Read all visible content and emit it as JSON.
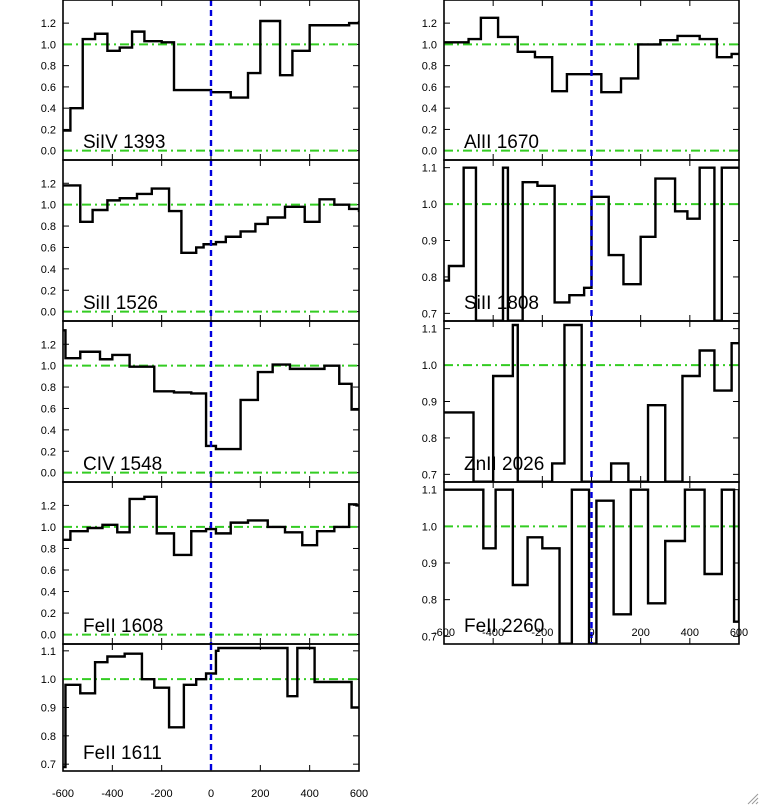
{
  "colors": {
    "spectrum": "#000000",
    "continuum": "#33cc22",
    "zero_velocity": "#0000dd"
  },
  "chart_data": {
    "type": "line",
    "xlabel": "",
    "ylabel": "",
    "xlim": [
      -600,
      600
    ],
    "x_ticks": [
      -600,
      -400,
      -200,
      0,
      200,
      400,
      600
    ],
    "x_tick_labels": [
      "-600",
      "-400",
      "-200",
      "0",
      "200",
      "400",
      "600"
    ],
    "reference_lines": {
      "continuum": 1.0,
      "baseline": 0.0,
      "velocity": 0
    },
    "panels": [
      {
        "label": "SiIV 1393",
        "column": "left",
        "row": 0,
        "ylim": [
          -0.05,
          1.38
        ],
        "y_ticks": [
          0.0,
          0.2,
          0.4,
          0.6,
          0.8,
          1.0,
          1.2
        ],
        "y_tick_labels": [
          "0.0",
          "0.2",
          "0.4",
          "0.6",
          "0.8",
          "1.0",
          "1.2"
        ],
        "baseline": true,
        "x": [
          -600,
          -570,
          -520,
          -470,
          -420,
          -370,
          -320,
          -270,
          -200,
          -150,
          -70,
          0,
          80,
          150,
          200,
          280,
          330,
          400,
          480,
          560,
          600
        ],
        "y": [
          0.19,
          0.4,
          1.05,
          1.1,
          0.94,
          0.97,
          1.12,
          1.03,
          1.02,
          0.57,
          0.57,
          0.55,
          0.5,
          0.73,
          1.22,
          0.71,
          0.94,
          1.18,
          1.18,
          1.2,
          1.22
        ]
      },
      {
        "label": "AlII 1670",
        "column": "right",
        "row": 0,
        "ylim": [
          -0.05,
          1.38
        ],
        "y_ticks": [
          0.0,
          0.2,
          0.4,
          0.6,
          0.8,
          1.0,
          1.2
        ],
        "y_tick_labels": [
          "0.0",
          "0.2",
          "0.4",
          "0.6",
          "0.8",
          "1.0",
          "1.2"
        ],
        "baseline": true,
        "x": [
          -600,
          -500,
          -450,
          -380,
          -300,
          -230,
          -160,
          -100,
          -30,
          40,
          120,
          190,
          280,
          350,
          440,
          510,
          570
        ],
        "y": [
          1.02,
          1.05,
          1.25,
          1.07,
          0.93,
          0.88,
          0.56,
          0.72,
          0.72,
          0.55,
          0.68,
          1.0,
          1.04,
          1.08,
          1.05,
          0.88,
          0.91
        ]
      },
      {
        "label": "SiII 1526",
        "column": "left",
        "row": 1,
        "ylim": [
          -0.05,
          1.38
        ],
        "y_ticks": [
          0.0,
          0.2,
          0.4,
          0.6,
          0.8,
          1.0,
          1.2
        ],
        "y_tick_labels": [
          "0.0",
          "0.2",
          "0.4",
          "0.6",
          "0.8",
          "1.0",
          "1.2"
        ],
        "baseline": true,
        "x": [
          -600,
          -530,
          -480,
          -420,
          -370,
          -300,
          -240,
          -170,
          -120,
          -60,
          -30,
          20,
          60,
          120,
          180,
          230,
          300,
          380,
          440,
          500,
          560,
          600
        ],
        "y": [
          1.18,
          0.84,
          0.95,
          1.04,
          1.06,
          1.1,
          1.15,
          0.94,
          0.55,
          0.6,
          0.63,
          0.65,
          0.7,
          0.75,
          0.82,
          0.88,
          0.98,
          0.84,
          1.05,
          1.0,
          0.96,
          0.93
        ]
      },
      {
        "label": "SiII 1808",
        "column": "right",
        "row": 1,
        "ylim": [
          0.69,
          1.11
        ],
        "y_ticks": [
          0.7,
          0.8,
          0.9,
          1.0,
          1.1
        ],
        "y_tick_labels": [
          "0.7",
          "0.8",
          "0.9",
          "1.0",
          "1.1"
        ],
        "baseline": false,
        "x": [
          -600,
          -580,
          -520,
          -470,
          -360,
          -340,
          -280,
          -220,
          -150,
          -90,
          -30,
          0,
          70,
          130,
          200,
          260,
          340,
          390,
          440,
          500,
          530,
          550,
          600
        ],
        "y": [
          0.79,
          0.83,
          1.1,
          0.68,
          1.1,
          0.68,
          1.06,
          1.05,
          0.73,
          0.75,
          0.77,
          1.02,
          0.86,
          0.78,
          0.91,
          1.07,
          0.98,
          0.96,
          1.1,
          0.68,
          1.1,
          1.1,
          1.1
        ]
      },
      {
        "label": "CIV 1548",
        "column": "left",
        "row": 2,
        "ylim": [
          -0.05,
          1.38
        ],
        "y_ticks": [
          0.0,
          0.2,
          0.4,
          0.6,
          0.8,
          1.0,
          1.2
        ],
        "y_tick_labels": [
          "0.0",
          "0.2",
          "0.4",
          "0.6",
          "0.8",
          "1.0",
          "1.2"
        ],
        "baseline": true,
        "x": [
          -600,
          -590,
          -530,
          -450,
          -400,
          -330,
          -230,
          -150,
          -80,
          -20,
          20,
          120,
          190,
          250,
          320,
          400,
          460,
          520,
          570,
          600
        ],
        "y": [
          1.33,
          1.07,
          1.13,
          1.06,
          1.1,
          0.99,
          0.76,
          0.75,
          0.74,
          0.25,
          0.22,
          0.68,
          0.94,
          1.01,
          0.97,
          0.97,
          1.0,
          0.83,
          0.59,
          0.58
        ]
      },
      {
        "label": "ZnII 2026",
        "column": "right",
        "row": 2,
        "ylim": [
          0.69,
          1.11
        ],
        "y_ticks": [
          0.7,
          0.8,
          0.9,
          1.0,
          1.1
        ],
        "y_tick_labels": [
          "0.7",
          "0.8",
          "0.9",
          "1.0",
          "1.1"
        ],
        "baseline": false,
        "x": [
          -600,
          -540,
          -480,
          -400,
          -320,
          -300,
          -230,
          -160,
          -110,
          -70,
          -40,
          0,
          80,
          150,
          230,
          300,
          370,
          440,
          500,
          570,
          600
        ],
        "y": [
          0.87,
          0.87,
          0.68,
          0.97,
          1.11,
          0.68,
          0.68,
          0.73,
          1.11,
          1.11,
          0.68,
          0.68,
          0.73,
          0.68,
          0.89,
          0.68,
          0.97,
          1.04,
          0.93,
          1.06,
          1.06
        ]
      },
      {
        "label": "FeII 1608",
        "column": "left",
        "row": 3,
        "ylim": [
          -0.05,
          1.38
        ],
        "y_ticks": [
          0.0,
          0.2,
          0.4,
          0.6,
          0.8,
          1.0,
          1.2
        ],
        "y_tick_labels": [
          "0.0",
          "0.2",
          "0.4",
          "0.6",
          "0.8",
          "1.0",
          "1.2"
        ],
        "baseline": true,
        "x": [
          -600,
          -570,
          -500,
          -440,
          -380,
          -330,
          -270,
          -220,
          -150,
          -80,
          -20,
          20,
          80,
          150,
          230,
          300,
          370,
          430,
          500,
          560,
          590,
          600
        ],
        "y": [
          0.88,
          0.96,
          0.99,
          1.02,
          0.95,
          1.26,
          1.28,
          0.94,
          0.74,
          0.96,
          0.98,
          0.94,
          1.04,
          1.06,
          1.0,
          0.95,
          0.83,
          0.96,
          1.0,
          1.21,
          1.2,
          1.2
        ]
      },
      {
        "label": "FeII 2260",
        "column": "right",
        "row": 3,
        "ylim": [
          0.69,
          1.11
        ],
        "y_ticks": [
          0.7,
          0.8,
          0.9,
          1.0,
          1.1
        ],
        "y_tick_labels": [
          "0.7",
          "0.8",
          "0.9",
          "1.0",
          "1.1"
        ],
        "baseline": false,
        "x": [
          -600,
          -530,
          -440,
          -390,
          -320,
          -260,
          -200,
          -130,
          -80,
          -10,
          20,
          90,
          160,
          230,
          300,
          380,
          460,
          530,
          580,
          600
        ],
        "y": [
          1.1,
          1.1,
          0.94,
          1.1,
          0.84,
          0.97,
          0.94,
          0.68,
          1.1,
          0.68,
          1.07,
          0.76,
          1.1,
          0.79,
          0.96,
          1.1,
          0.87,
          1.1,
          0.74,
          1.1
        ]
      },
      {
        "label": "FeII 1611",
        "column": "left",
        "row": 4,
        "ylim": [
          0.69,
          1.11
        ],
        "y_ticks": [
          0.7,
          0.8,
          0.9,
          1.0,
          1.1
        ],
        "y_tick_labels": [
          "0.7",
          "0.8",
          "0.9",
          "1.0",
          "1.1"
        ],
        "baseline": false,
        "x": [
          -600,
          -590,
          -530,
          -470,
          -420,
          -350,
          -280,
          -230,
          -170,
          -110,
          -60,
          -20,
          20,
          30,
          40,
          310,
          350,
          380,
          420,
          450,
          510,
          570,
          590,
          600
        ],
        "y": [
          0.69,
          0.98,
          0.95,
          1.06,
          1.08,
          1.09,
          1.0,
          0.97,
          0.83,
          0.98,
          1.0,
          1.02,
          1.1,
          1.11,
          1.11,
          0.94,
          1.11,
          1.11,
          0.99,
          0.99,
          0.99,
          0.9,
          0.9,
          0.9
        ]
      }
    ]
  }
}
